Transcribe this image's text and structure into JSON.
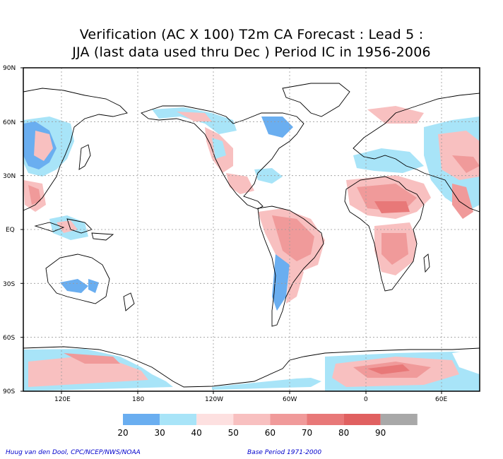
{
  "title_line1": "Verification (AC X 100) T2m CA Forecast : Lead 5 :",
  "title_line2": "JJA (last data used thru Dec ) Period IC in 1956-2006",
  "lat_labels": [
    "90N",
    "60N",
    "30N",
    "EQ",
    "30S",
    "60S",
    "90S"
  ],
  "lon_labels": [
    "120E",
    "180",
    "120W",
    "60W",
    "0",
    "60E"
  ],
  "colorbar": {
    "labels": [
      "20",
      "30",
      "40",
      "50",
      "60",
      "70",
      "80",
      "90"
    ],
    "colors": [
      "#6aaef0",
      "#a8e4f8",
      "#fde0e0",
      "#f8c0c0",
      "#f09a9a",
      "#e87878",
      "#e06060",
      "#a8a8a8"
    ]
  },
  "footer": {
    "credit": "Huug van den Dool, CPC/NCEP/NWS/NOAA",
    "base_period": "Base Period 1971-2000"
  },
  "legend_colors": {
    "blue_20": "#6aaef0",
    "lightblue_30": "#a8e4f8",
    "pink_50": "#f8c0c0",
    "red_70": "#e87878",
    "red_80": "#e06060"
  }
}
